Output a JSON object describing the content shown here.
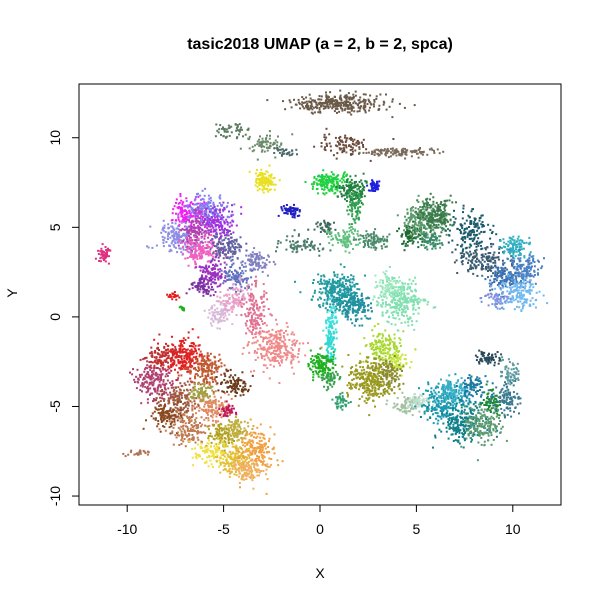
{
  "chart_data": {
    "type": "scatter",
    "title": "tasic2018 UMAP (a = 2, b = 2, spca)",
    "xlabel": "X",
    "ylabel": "Y",
    "xlim": [
      -12.5,
      12.5
    ],
    "ylim": [
      -10.5,
      13
    ],
    "x_ticks": [
      -10,
      -5,
      0,
      5,
      10
    ],
    "y_ticks": [
      -10,
      -5,
      0,
      5,
      10
    ],
    "grid": false,
    "legend": "none",
    "clusters": [
      {
        "x": 1.0,
        "y": 11.9,
        "sx": 1.2,
        "sy": 0.25,
        "n": 320,
        "color": "#6b5a48"
      },
      {
        "x": -4.6,
        "y": 10.4,
        "sx": 0.45,
        "sy": 0.2,
        "n": 50,
        "color": "#5a7a60"
      },
      {
        "x": -2.9,
        "y": 9.7,
        "sx": 0.45,
        "sy": 0.25,
        "n": 70,
        "color": "#6a8a6a"
      },
      {
        "x": -1.8,
        "y": 9.2,
        "sx": 0.3,
        "sy": 0.15,
        "n": 30,
        "color": "#4a6a6a"
      },
      {
        "x": 1.2,
        "y": 9.6,
        "sx": 0.7,
        "sy": 0.3,
        "n": 90,
        "color": "#6b4a3a"
      },
      {
        "x": 4.2,
        "y": 9.2,
        "sx": 1.0,
        "sy": 0.12,
        "n": 120,
        "color": "#7a6a5a"
      },
      {
        "x": -2.9,
        "y": 7.6,
        "sx": 0.25,
        "sy": 0.3,
        "n": 120,
        "color": "#e8e020"
      },
      {
        "x": -1.5,
        "y": 5.9,
        "sx": 0.25,
        "sy": 0.15,
        "n": 60,
        "color": "#2020c0"
      },
      {
        "x": 0.5,
        "y": 7.5,
        "sx": 0.45,
        "sy": 0.25,
        "n": 160,
        "color": "#20d040"
      },
      {
        "x": 1.7,
        "y": 7.0,
        "sx": 0.4,
        "sy": 0.35,
        "n": 140,
        "color": "#208040"
      },
      {
        "x": 1.8,
        "y": 6.2,
        "sx": 0.2,
        "sy": 0.5,
        "n": 70,
        "color": "#30a050"
      },
      {
        "x": 2.8,
        "y": 7.3,
        "sx": 0.15,
        "sy": 0.15,
        "n": 60,
        "color": "#2020e0"
      },
      {
        "x": 0.2,
        "y": 5.0,
        "sx": 0.3,
        "sy": 0.2,
        "n": 40,
        "color": "#3a6a5a"
      },
      {
        "x": -0.9,
        "y": 4.0,
        "sx": 0.6,
        "sy": 0.25,
        "n": 70,
        "color": "#4a7a6a"
      },
      {
        "x": 1.3,
        "y": 4.4,
        "sx": 0.4,
        "sy": 0.3,
        "n": 90,
        "color": "#60c080"
      },
      {
        "x": 2.8,
        "y": 4.3,
        "sx": 0.4,
        "sy": 0.25,
        "n": 90,
        "color": "#4a8a6a"
      },
      {
        "x": 4.7,
        "y": 4.6,
        "sx": 0.3,
        "sy": 0.3,
        "n": 90,
        "color": "#1a6a30"
      },
      {
        "x": 5.4,
        "y": 5.5,
        "sx": 0.45,
        "sy": 0.5,
        "n": 220,
        "color": "#5a9a6a"
      },
      {
        "x": 6.0,
        "y": 5.7,
        "sx": 0.4,
        "sy": 0.5,
        "n": 180,
        "color": "#3a7a4a"
      },
      {
        "x": 5.8,
        "y": 4.3,
        "sx": 0.3,
        "sy": 0.3,
        "n": 70,
        "color": "#3a8a6a"
      },
      {
        "x": 7.9,
        "y": 4.8,
        "sx": 0.45,
        "sy": 0.55,
        "n": 150,
        "color": "#1a5a6a"
      },
      {
        "x": 8.4,
        "y": 3.2,
        "sx": 0.6,
        "sy": 0.45,
        "n": 160,
        "color": "#3a5a70"
      },
      {
        "x": 9.6,
        "y": 2.2,
        "sx": 0.5,
        "sy": 0.4,
        "n": 120,
        "color": "#3a70b0"
      },
      {
        "x": 10.1,
        "y": 3.9,
        "sx": 0.4,
        "sy": 0.3,
        "n": 100,
        "color": "#30b0c0"
      },
      {
        "x": 10.5,
        "y": 2.6,
        "sx": 0.5,
        "sy": 0.4,
        "n": 140,
        "color": "#4a80c0"
      },
      {
        "x": 10.3,
        "y": 1.3,
        "sx": 0.5,
        "sy": 0.45,
        "n": 160,
        "color": "#70b8f0"
      },
      {
        "x": 9.2,
        "y": 1.0,
        "sx": 0.35,
        "sy": 0.2,
        "n": 50,
        "color": "#8090e0"
      },
      {
        "x": -11.2,
        "y": 3.5,
        "sx": 0.15,
        "sy": 0.2,
        "n": 50,
        "color": "#e03080"
      },
      {
        "x": -6.8,
        "y": 5.8,
        "sx": 0.5,
        "sy": 0.4,
        "n": 150,
        "color": "#f020f0"
      },
      {
        "x": -5.8,
        "y": 6.0,
        "sx": 0.55,
        "sy": 0.45,
        "n": 170,
        "color": "#8080f0"
      },
      {
        "x": -7.4,
        "y": 4.4,
        "sx": 0.55,
        "sy": 0.45,
        "n": 160,
        "color": "#8c8ce6"
      },
      {
        "x": -6.4,
        "y": 4.8,
        "sx": 0.4,
        "sy": 0.5,
        "n": 150,
        "color": "#b040b0"
      },
      {
        "x": -5.2,
        "y": 5.2,
        "sx": 0.4,
        "sy": 0.5,
        "n": 130,
        "color": "#a030e0"
      },
      {
        "x": -6.2,
        "y": 3.7,
        "sx": 0.45,
        "sy": 0.4,
        "n": 140,
        "color": "#f060c0"
      },
      {
        "x": -4.9,
        "y": 3.8,
        "sx": 0.4,
        "sy": 0.4,
        "n": 120,
        "color": "#6060a0"
      },
      {
        "x": -3.3,
        "y": 3.1,
        "sx": 0.35,
        "sy": 0.35,
        "n": 90,
        "color": "#8080c0"
      },
      {
        "x": -5.6,
        "y": 2.4,
        "sx": 0.4,
        "sy": 0.4,
        "n": 120,
        "color": "#9a30c0"
      },
      {
        "x": -4.3,
        "y": 2.3,
        "sx": 0.35,
        "sy": 0.35,
        "n": 90,
        "color": "#6070c0"
      },
      {
        "x": -6.1,
        "y": 1.7,
        "sx": 0.3,
        "sy": 0.25,
        "n": 60,
        "color": "#7a30a0"
      },
      {
        "x": -4.5,
        "y": 0.9,
        "sx": 0.4,
        "sy": 0.45,
        "n": 110,
        "color": "#e8a0c8"
      },
      {
        "x": -5.3,
        "y": 0.1,
        "sx": 0.35,
        "sy": 0.35,
        "n": 70,
        "color": "#d8b8d8"
      },
      {
        "x": -3.4,
        "y": 0.2,
        "sx": 0.3,
        "sy": 0.7,
        "n": 140,
        "color": "#e07090"
      },
      {
        "x": -2.3,
        "y": -1.7,
        "sx": 0.7,
        "sy": 0.55,
        "n": 260,
        "color": "#f08a8a"
      },
      {
        "x": -7.6,
        "y": 1.2,
        "sx": 0.15,
        "sy": 0.1,
        "n": 25,
        "color": "#e02020"
      },
      {
        "x": -7.1,
        "y": 0.5,
        "sx": 0.1,
        "sy": 0.08,
        "n": 10,
        "color": "#20b020"
      },
      {
        "x": 0.9,
        "y": 1.4,
        "sx": 0.6,
        "sy": 0.5,
        "n": 300,
        "color": "#1e9aa0"
      },
      {
        "x": 1.8,
        "y": 0.6,
        "sx": 0.45,
        "sy": 0.45,
        "n": 150,
        "color": "#2090a0"
      },
      {
        "x": 0.6,
        "y": -0.4,
        "sx": 0.15,
        "sy": 0.5,
        "n": 80,
        "color": "#40e0e0"
      },
      {
        "x": 0.5,
        "y": -1.7,
        "sx": 0.12,
        "sy": 0.5,
        "n": 70,
        "color": "#30d8d0"
      },
      {
        "x": 0.1,
        "y": -2.7,
        "sx": 0.35,
        "sy": 0.35,
        "n": 150,
        "color": "#20b020"
      },
      {
        "x": 0.5,
        "y": -3.5,
        "sx": 0.2,
        "sy": 0.25,
        "n": 50,
        "color": "#3aa050"
      },
      {
        "x": 1.1,
        "y": -4.7,
        "sx": 0.2,
        "sy": 0.2,
        "n": 40,
        "color": "#30a070"
      },
      {
        "x": 4.2,
        "y": 0.9,
        "sx": 0.55,
        "sy": 0.65,
        "n": 260,
        "color": "#80e0b0"
      },
      {
        "x": 3.6,
        "y": 1.6,
        "sx": 0.35,
        "sy": 0.35,
        "n": 80,
        "color": "#a0e8c0"
      },
      {
        "x": 3.3,
        "y": -1.7,
        "sx": 0.5,
        "sy": 0.45,
        "n": 150,
        "color": "#a8d830"
      },
      {
        "x": 4.0,
        "y": -2.5,
        "sx": 0.3,
        "sy": 0.3,
        "n": 70,
        "color": "#c8e840"
      },
      {
        "x": 2.6,
        "y": -3.5,
        "sx": 0.6,
        "sy": 0.55,
        "n": 300,
        "color": "#9a9a20"
      },
      {
        "x": 3.6,
        "y": -3.1,
        "sx": 0.3,
        "sy": 0.4,
        "n": 90,
        "color": "#8a8a30"
      },
      {
        "x": 4.5,
        "y": -4.9,
        "sx": 0.35,
        "sy": 0.25,
        "n": 80,
        "color": "#a0c0a0"
      },
      {
        "x": 5.2,
        "y": -4.8,
        "sx": 0.3,
        "sy": 0.25,
        "n": 60,
        "color": "#c0e0d0"
      },
      {
        "x": 6.4,
        "y": -4.8,
        "sx": 0.6,
        "sy": 0.55,
        "n": 220,
        "color": "#1a9ab0"
      },
      {
        "x": 7.4,
        "y": -5.9,
        "sx": 0.6,
        "sy": 0.55,
        "n": 220,
        "color": "#10808a"
      },
      {
        "x": 6.9,
        "y": -4.1,
        "sx": 0.4,
        "sy": 0.35,
        "n": 110,
        "color": "#3ab0c8"
      },
      {
        "x": 8.5,
        "y": -6.0,
        "sx": 0.5,
        "sy": 0.5,
        "n": 170,
        "color": "#5a9a70"
      },
      {
        "x": 8.9,
        "y": -4.7,
        "sx": 0.25,
        "sy": 0.3,
        "n": 60,
        "color": "#1a8a30"
      },
      {
        "x": 9.7,
        "y": -4.6,
        "sx": 0.35,
        "sy": 0.55,
        "n": 100,
        "color": "#3a7a90"
      },
      {
        "x": 9.9,
        "y": -3.1,
        "sx": 0.25,
        "sy": 0.35,
        "n": 60,
        "color": "#5a9aa0"
      },
      {
        "x": 8.7,
        "y": -2.3,
        "sx": 0.35,
        "sy": 0.2,
        "n": 60,
        "color": "#2a4a5a"
      },
      {
        "x": 7.9,
        "y": -3.9,
        "sx": 0.3,
        "sy": 0.35,
        "n": 80,
        "color": "#1a7aa0"
      },
      {
        "x": -8.6,
        "y": -3.6,
        "sx": 0.5,
        "sy": 0.6,
        "n": 200,
        "color": "#b04070"
      },
      {
        "x": -7.1,
        "y": -2.2,
        "sx": 0.55,
        "sy": 0.5,
        "n": 220,
        "color": "#e02020"
      },
      {
        "x": -8.2,
        "y": -2.3,
        "sx": 0.4,
        "sy": 0.4,
        "n": 100,
        "color": "#c03030"
      },
      {
        "x": -5.9,
        "y": -2.9,
        "sx": 0.45,
        "sy": 0.5,
        "n": 150,
        "color": "#c05a30"
      },
      {
        "x": -7.3,
        "y": -4.7,
        "sx": 0.45,
        "sy": 0.5,
        "n": 150,
        "color": "#a05a40"
      },
      {
        "x": -8.0,
        "y": -5.5,
        "sx": 0.4,
        "sy": 0.4,
        "n": 110,
        "color": "#8a4a20"
      },
      {
        "x": -6.8,
        "y": -6.3,
        "sx": 0.45,
        "sy": 0.45,
        "n": 130,
        "color": "#c07a50"
      },
      {
        "x": -5.6,
        "y": -5.0,
        "sx": 0.4,
        "sy": 0.4,
        "n": 120,
        "color": "#e08860"
      },
      {
        "x": -4.4,
        "y": -3.8,
        "sx": 0.35,
        "sy": 0.3,
        "n": 90,
        "color": "#6b3a1a"
      },
      {
        "x": -4.8,
        "y": -5.2,
        "sx": 0.2,
        "sy": 0.2,
        "n": 40,
        "color": "#c01a5a"
      },
      {
        "x": -5.0,
        "y": -6.5,
        "sx": 0.4,
        "sy": 0.35,
        "n": 110,
        "color": "#b0a020"
      },
      {
        "x": -5.6,
        "y": -7.6,
        "sx": 0.45,
        "sy": 0.35,
        "n": 110,
        "color": "#f0e040"
      },
      {
        "x": -4.4,
        "y": -7.9,
        "sx": 0.45,
        "sy": 0.5,
        "n": 140,
        "color": "#e0c030"
      },
      {
        "x": -3.3,
        "y": -7.4,
        "sx": 0.45,
        "sy": 0.6,
        "n": 180,
        "color": "#f0a040"
      },
      {
        "x": -3.8,
        "y": -8.5,
        "sx": 0.45,
        "sy": 0.35,
        "n": 110,
        "color": "#f0b060"
      },
      {
        "x": -4.3,
        "y": -6.2,
        "sx": 0.3,
        "sy": 0.3,
        "n": 70,
        "color": "#c0b040"
      },
      {
        "x": -6.2,
        "y": -4.2,
        "sx": 0.3,
        "sy": 0.3,
        "n": 70,
        "color": "#a0a040"
      },
      {
        "x": -9.4,
        "y": -7.6,
        "sx": 0.35,
        "sy": 0.1,
        "n": 25,
        "color": "#b07050"
      }
    ]
  }
}
